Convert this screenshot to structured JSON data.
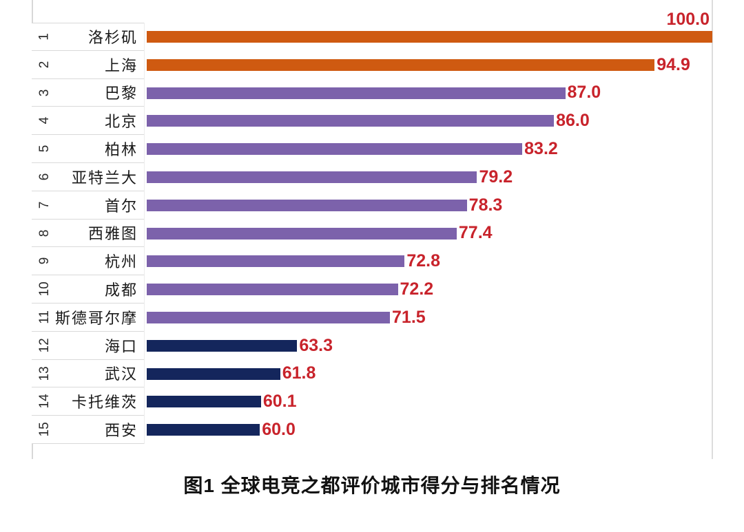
{
  "chart_data": {
    "type": "bar",
    "orientation": "horizontal",
    "title": "图1  全球电竞之都评价城市得分与排名情况",
    "legend": "none",
    "grid": "single vertical gridline at max value",
    "axis": {
      "xmin": 50,
      "xmax": 100,
      "gridline_at": 100,
      "gridline_color": "#dcdcdc",
      "axis_line_color": "#d7d7d7"
    },
    "ranks": [
      "1",
      "2",
      "3",
      "4",
      "5",
      "6",
      "7",
      "8",
      "9",
      "10",
      "11",
      "12",
      "13",
      "14",
      "15"
    ],
    "categories": [
      "洛杉矶",
      "上海",
      "巴黎",
      "北京",
      "柏林",
      "亚特兰大",
      "首尔",
      "西雅图",
      "杭州",
      "成都",
      "斯德哥尔摩",
      "海口",
      "武汉",
      "卡托维茨",
      "西安"
    ],
    "values": [
      100.0,
      94.9,
      87.0,
      86.0,
      83.2,
      79.2,
      78.3,
      77.4,
      72.8,
      72.2,
      71.5,
      63.3,
      61.8,
      60.1,
      60.0
    ],
    "value_labels": [
      "100.0",
      "94.9",
      "87.0",
      "86.0",
      "83.2",
      "79.2",
      "78.3",
      "77.4",
      "72.8",
      "72.2",
      "71.5",
      "63.3",
      "61.8",
      "60.1",
      "60.0"
    ],
    "tiers": [
      "orange",
      "orange",
      "purple",
      "purple",
      "purple",
      "purple",
      "purple",
      "purple",
      "purple",
      "purple",
      "purple",
      "navy",
      "navy",
      "navy",
      "navy"
    ],
    "tier_colors": {
      "orange": "#cf5a11",
      "purple": "#7c62ab",
      "navy": "#14265c"
    },
    "value_label_color": "#c8232b",
    "first_value_label_position": "above-bar-right-aligned"
  }
}
